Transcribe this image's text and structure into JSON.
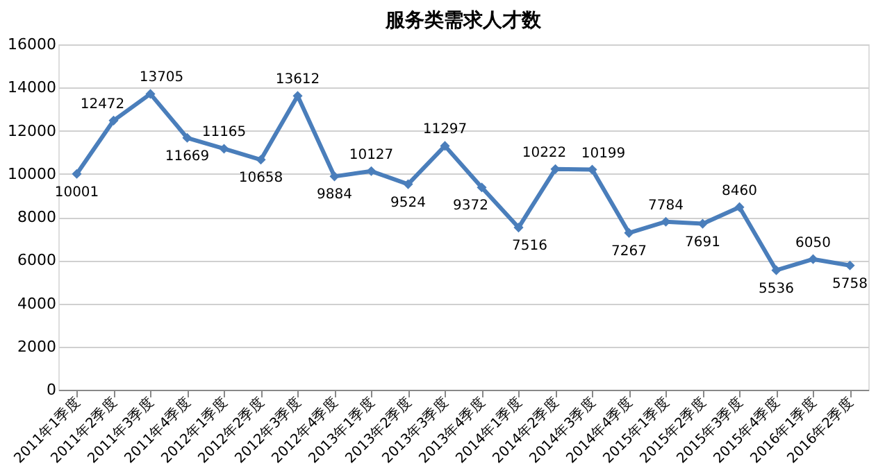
{
  "chart_data": {
    "type": "line",
    "title": "服务类需求人才数",
    "categories": [
      "2011年1季度",
      "2011年2季度",
      "2011年3季度",
      "2011年4季度",
      "2012年1季度",
      "2012年2季度",
      "2012年3季度",
      "2012年4季度",
      "2013年1季度",
      "2013年2季度",
      "2013年3季度",
      "2013年4季度",
      "2014年1季度",
      "2014年2季度",
      "2014年3季度",
      "2014年4季度",
      "2015年1季度",
      "2015年2季度",
      "2015年3季度",
      "2015年4季度",
      "2016年1季度",
      "2016年2季度"
    ],
    "series": [
      {
        "color": "#4a7ebb",
        "values": [
          10001,
          12472,
          13705,
          11669,
          11165,
          10658,
          13612,
          9884,
          10127,
          9524,
          11297,
          9372,
          7516,
          10222,
          10199,
          7267,
          7784,
          7691,
          8460,
          5536,
          6050,
          5758
        ]
      }
    ],
    "ylim": [
      0,
      16000
    ],
    "yticks": [
      0,
      2000,
      4000,
      6000,
      8000,
      10000,
      12000,
      14000,
      16000
    ],
    "grid": "y",
    "legend": false,
    "marker": "diamond",
    "line_style": "solid",
    "data_labels": true
  }
}
